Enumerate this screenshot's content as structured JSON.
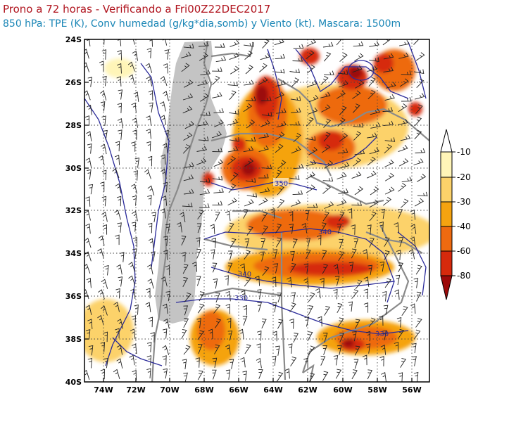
{
  "header": {
    "title": "Prono a 72 horas - Verificando a Fri00Z22DEC2017",
    "subtitle": "850 hPa: TPE (K), Conv humedad (g/kg*dia,somb) y Viento (kt). Mascara: 1500m"
  },
  "map": {
    "lat_labels": [
      "24S",
      "26S",
      "28S",
      "30S",
      "32S",
      "34S",
      "36S",
      "38S",
      "40S"
    ],
    "lon_labels": [
      "74W",
      "72W",
      "70W",
      "68W",
      "66W",
      "64W",
      "62W",
      "60W",
      "58W",
      "56W"
    ],
    "contour_labels": [
      "350",
      "340",
      "340",
      "330",
      "330"
    ],
    "fill_levels": [
      "-10",
      "-20",
      "-30",
      "-40",
      "-60",
      "-80"
    ],
    "fill_colors": [
      "#fff5b8",
      "#fcd26a",
      "#f5a310",
      "#ee6a10",
      "#d62a0c",
      "#9c0a0a"
    ],
    "mask_color": "#c4c4c4",
    "contour_color": "#2a2a9a"
  }
}
